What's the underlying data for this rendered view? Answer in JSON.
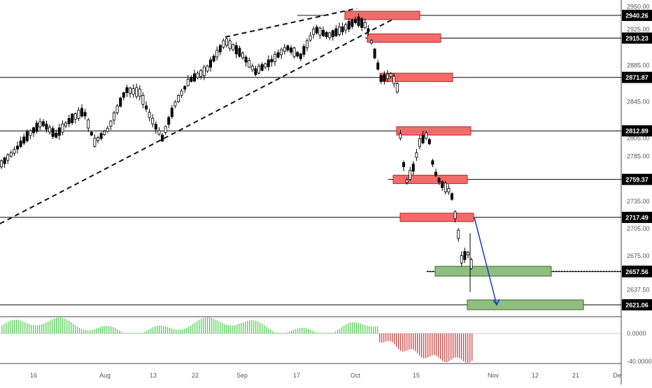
{
  "chart_data": {
    "type": "candlestick",
    "price_axis_ticks": [
      "2950.00",
      "2925.00",
      "2885.00",
      "2845.00",
      "2805.00",
      "2785.00",
      "2735.00",
      "2705.00",
      "2675.00",
      "2637.50"
    ],
    "indicator_axis_ticks": [
      "0.0000",
      "-40.0000"
    ],
    "x_axis_labels": [
      "16",
      "Aug",
      "13",
      "22",
      "Sep",
      "17",
      "Oct",
      "15",
      "Nov",
      "12",
      "21",
      "De"
    ],
    "levels": [
      {
        "value": "2940.26",
        "color": "#000000"
      },
      {
        "value": "2915.23",
        "color": "#000000"
      },
      {
        "value": "2871.87",
        "color": "#000000"
      },
      {
        "value": "2812.89",
        "color": "#000000"
      },
      {
        "value": "2759.37",
        "color": "#000000"
      },
      {
        "value": "2717.49",
        "color": "#000000"
      },
      {
        "value": "2658.12",
        "color": "#000000"
      },
      {
        "value": "2657.56",
        "color": "#000000"
      },
      {
        "value": "2621.06",
        "color": "#000000"
      }
    ],
    "resistance_zones": [
      2940.26,
      2915.23,
      2871.87,
      2812.89,
      2759.37,
      2717.49
    ],
    "support_zones": [
      2658.12,
      2621.06
    ],
    "projection_arrow": {
      "from": 2717.49,
      "to": 2621.06,
      "color": "#1a35d8"
    },
    "colors": {
      "bull": "#ffffff",
      "bear": "#000000",
      "zone_red": "#f26b6b",
      "zone_green": "#8fbf7f",
      "osc_pos": "#5fd35f",
      "osc_neg": "#d05050"
    }
  }
}
